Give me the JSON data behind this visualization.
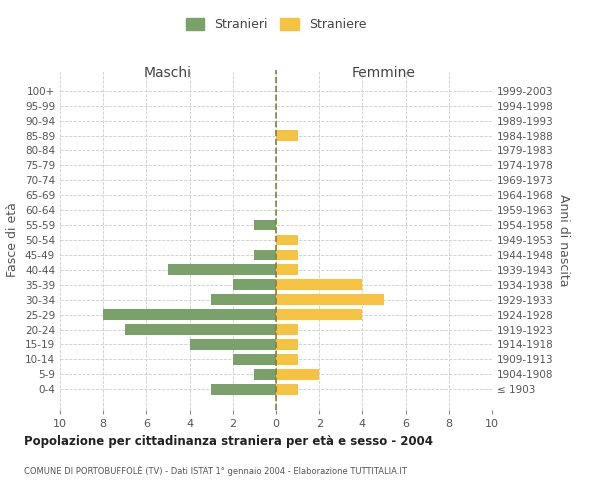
{
  "age_groups": [
    "100+",
    "95-99",
    "90-94",
    "85-89",
    "80-84",
    "75-79",
    "70-74",
    "65-69",
    "60-64",
    "55-59",
    "50-54",
    "45-49",
    "40-44",
    "35-39",
    "30-34",
    "25-29",
    "20-24",
    "15-19",
    "10-14",
    "5-9",
    "0-4"
  ],
  "birth_years": [
    "≤ 1903",
    "1904-1908",
    "1909-1913",
    "1914-1918",
    "1919-1923",
    "1924-1928",
    "1929-1933",
    "1934-1938",
    "1939-1943",
    "1944-1948",
    "1949-1953",
    "1954-1958",
    "1959-1963",
    "1964-1968",
    "1969-1973",
    "1974-1978",
    "1979-1983",
    "1984-1988",
    "1989-1993",
    "1994-1998",
    "1999-2003"
  ],
  "males": [
    0,
    0,
    0,
    0,
    0,
    0,
    0,
    0,
    0,
    1,
    0,
    1,
    5,
    2,
    3,
    8,
    7,
    4,
    2,
    1,
    3
  ],
  "females": [
    0,
    0,
    0,
    1,
    0,
    0,
    0,
    0,
    0,
    0,
    1,
    1,
    1,
    4,
    5,
    4,
    1,
    1,
    1,
    2,
    1
  ],
  "male_color": "#7aa16a",
  "female_color": "#f5c242",
  "dashed_line_color": "#808040",
  "background_color": "#ffffff",
  "grid_color": "#cccccc",
  "title": "Popolazione per cittadinanza straniera per età e sesso - 2004",
  "subtitle": "COMUNE DI PORTOBUFFOLÈ (TV) - Dati ISTAT 1° gennaio 2004 - Elaborazione TUTTITALIA.IT",
  "xlabel_left": "Maschi",
  "xlabel_right": "Femmine",
  "ylabel_left": "Fasce di età",
  "ylabel_right": "Anni di nascita",
  "legend_stranieri": "Stranieri",
  "legend_straniere": "Straniere",
  "xlim": 10
}
